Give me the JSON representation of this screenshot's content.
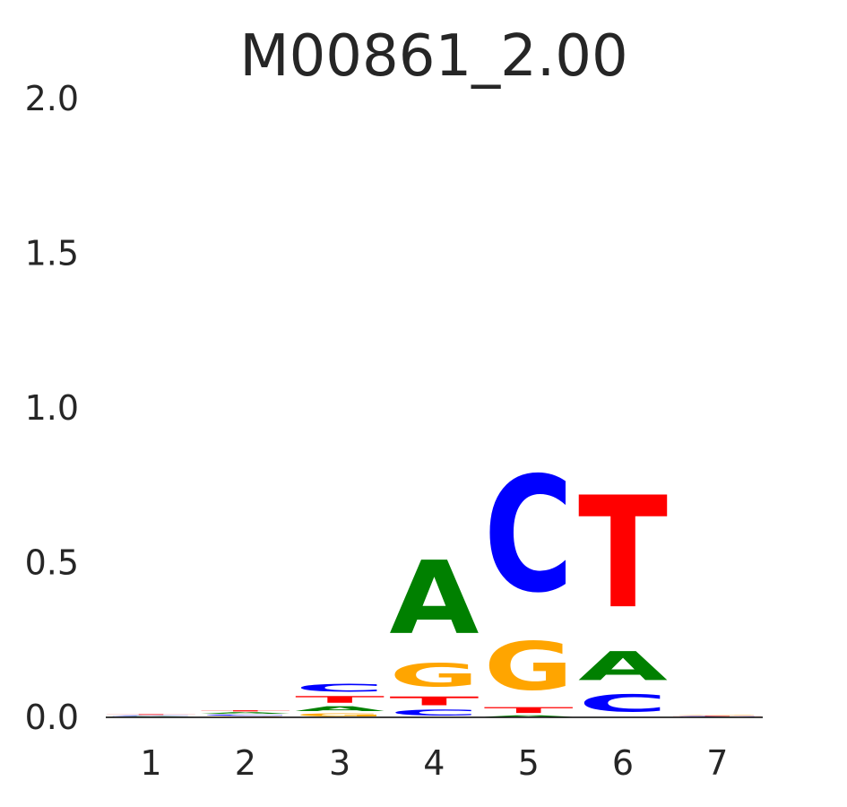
{
  "chart_data": {
    "type": "sequence-logo",
    "title": "M00861_2.00",
    "xlabel": "",
    "ylabel": "",
    "ylim": [
      0,
      2.0
    ],
    "yticks": [
      "0.0",
      "0.5",
      "1.0",
      "1.5",
      "2.0"
    ],
    "ytick_values": [
      0,
      0.5,
      1.0,
      1.5,
      2.0
    ],
    "positions": [
      "1",
      "2",
      "3",
      "4",
      "5",
      "6",
      "7"
    ],
    "grid": false,
    "colors": {
      "A": "#008000",
      "C": "#0000ff",
      "G": "#ffa500",
      "T": "#ff0000"
    },
    "stacks": [
      [
        {
          "letter": "G",
          "value": 0.002
        },
        {
          "letter": "A",
          "value": 0.002
        },
        {
          "letter": "C",
          "value": 0.003
        },
        {
          "letter": "T",
          "value": 0.004
        }
      ],
      [
        {
          "letter": "G",
          "value": 0.004
        },
        {
          "letter": "C",
          "value": 0.006
        },
        {
          "letter": "A",
          "value": 0.008
        },
        {
          "letter": "T",
          "value": 0.006
        }
      ],
      [
        {
          "letter": "G",
          "value": 0.015
        },
        {
          "letter": "A",
          "value": 0.025
        },
        {
          "letter": "T",
          "value": 0.035
        },
        {
          "letter": "C",
          "value": 0.04
        }
      ],
      [
        {
          "letter": "C",
          "value": 0.03
        },
        {
          "letter": "T",
          "value": 0.045
        },
        {
          "letter": "G",
          "value": 0.12
        },
        {
          "letter": "A",
          "value": 0.38
        }
      ],
      [
        {
          "letter": "A",
          "value": 0.008
        },
        {
          "letter": "T",
          "value": 0.03
        },
        {
          "letter": "G",
          "value": 0.25
        },
        {
          "letter": "C",
          "value": 0.6
        }
      ],
      [
        {
          "letter": "C",
          "value": 0.09
        },
        {
          "letter": "A",
          "value": 0.15
        },
        {
          "letter": "T",
          "value": 0.58
        }
      ],
      [
        {
          "letter": "A",
          "value": 0.002
        },
        {
          "letter": "C",
          "value": 0.002
        },
        {
          "letter": "T",
          "value": 0.002
        },
        {
          "letter": "G",
          "value": 0.003
        }
      ]
    ]
  }
}
